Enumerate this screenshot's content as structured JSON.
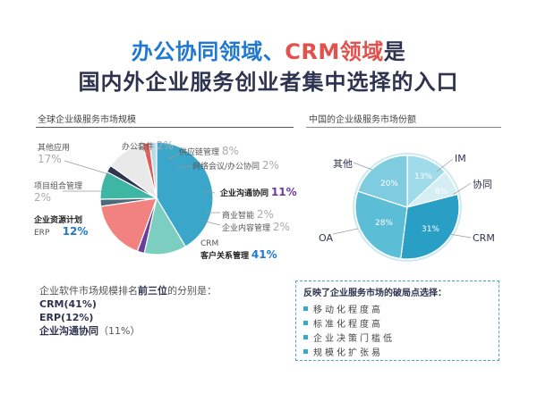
{
  "title": {
    "line1_part1": "办公协同领域、",
    "line1_part2": "CRM领域",
    "line1_part3": "是",
    "line2": "国内外企业服务创业者集中选择的入口"
  },
  "left": {
    "heading": "全球企业级服务市场规模",
    "labels": {
      "other_apps": "其他应用",
      "office_suite": "办公套件",
      "supply_chain": "供应链管理",
      "network_meeting": "网络会议/办公协同",
      "portfolio": "项目组合管理",
      "enterprise_comm": "企业沟通协同",
      "bi": "商业智能",
      "content": "企业内容管理",
      "erp_cn": "企业资源计划",
      "erp_en": "ERP",
      "crm_en": "CRM",
      "crm_cn": "客户关系管理"
    },
    "percents": {
      "other_apps": "17%",
      "office_suite": "2%",
      "supply_chain": "8%",
      "network_meeting": "2%",
      "portfolio": "2%",
      "enterprise_comm": "11%",
      "bi": "2%",
      "content": "2%",
      "erp": "12%",
      "crm": "41%"
    }
  },
  "right": {
    "heading": "中国的企业级服务市场份额",
    "labels": {
      "im": "IM",
      "collab": "协同",
      "crm": "CRM",
      "oa": "OA",
      "other": "其他"
    },
    "percents": {
      "im": "13%",
      "collab": "8%",
      "crm": "31%",
      "oa": "28%",
      "other": "20%"
    }
  },
  "summary": {
    "intro_part1": "企业软件市场规模排名",
    "intro_bold": "前三位",
    "intro_part2": "的分别是：",
    "item1": "CRM(41%)",
    "item2": "ERP(12%)",
    "item3_name": "企业沟通协同",
    "item3_pct": "（11%）"
  },
  "box": {
    "title": "反映了企业服务市场的破局点选择：",
    "items": [
      "移动化程度高",
      "标准化程度高",
      "企业决策门槛低",
      "规模化扩张易"
    ]
  },
  "chart_data": [
    {
      "type": "pie",
      "title": "全球企业级服务市场规模",
      "slices": [
        {
          "label": "客户关系管理 CRM",
          "value": 41,
          "color": "#3aa6c9"
        },
        {
          "label": "企业资源计划 ERP",
          "value": 12,
          "color": "#7ccfc0"
        },
        {
          "label": "项目组合管理",
          "value": 2,
          "color": "#6a3d9a"
        },
        {
          "label": "其他应用",
          "value": 17,
          "color": "#f2827f"
        },
        {
          "label": "办公套件",
          "value": 2,
          "color": "#4a6b7a"
        },
        {
          "label": "供应链管理",
          "value": 8,
          "color": "#3fb6a4"
        },
        {
          "label": "网络会议/办公协同",
          "value": 2,
          "color": "#2e3350"
        },
        {
          "label": "企业沟通协同",
          "value": 11,
          "color": "#e9e9ea"
        },
        {
          "label": "商业智能",
          "value": 2,
          "color": "#e35d58"
        },
        {
          "label": "企业内容管理",
          "value": 2,
          "color": "#b9dcea"
        }
      ]
    },
    {
      "type": "pie",
      "title": "中国的企业级服务市场份额",
      "slices": [
        {
          "label": "IM",
          "value": 13,
          "color": "#9fdbe8"
        },
        {
          "label": "协同",
          "value": 8,
          "color": "#d4eef4"
        },
        {
          "label": "CRM",
          "value": 31,
          "color": "#2a9fc6"
        },
        {
          "label": "OA",
          "value": 28,
          "color": "#5cbdd6"
        },
        {
          "label": "其他",
          "value": 20,
          "color": "#7fcbe0"
        }
      ]
    }
  ]
}
